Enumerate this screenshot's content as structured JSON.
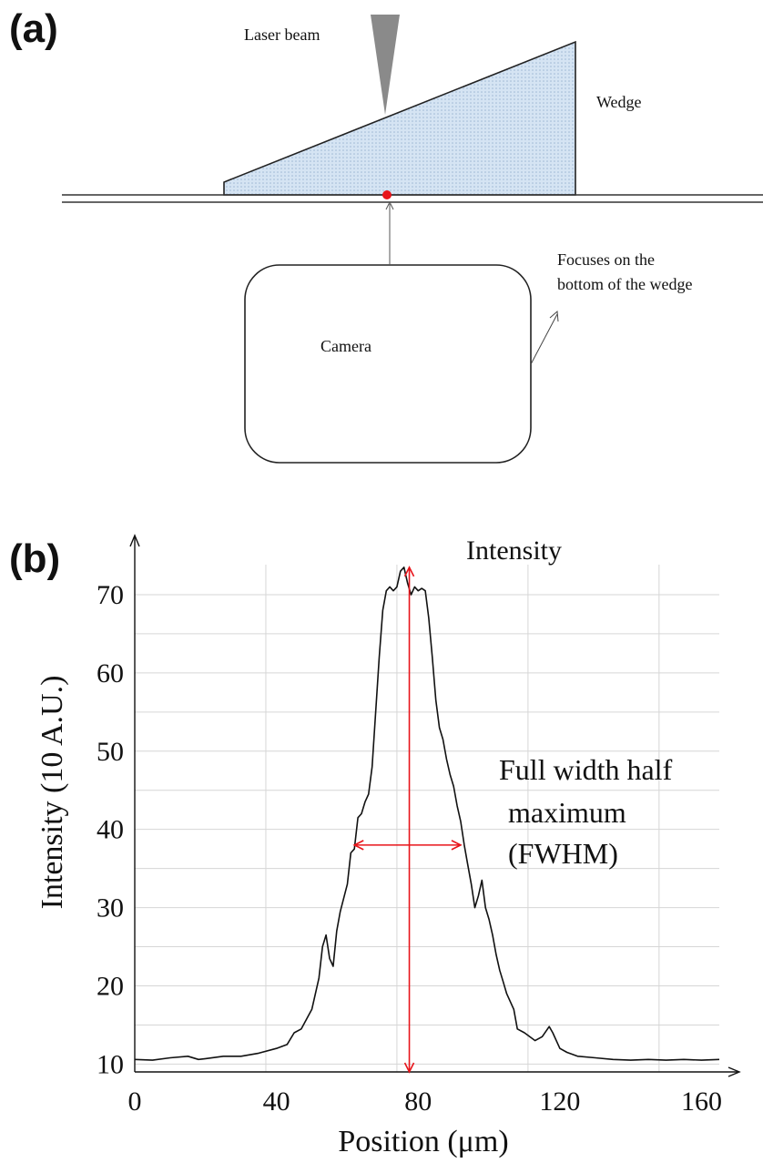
{
  "panel_a": {
    "label": "(a)",
    "laser_beam_label": "Laser beam",
    "wedge_label": "Wedge",
    "camera_label": "Camera",
    "focus_note_line1": "Focuses on the",
    "focus_note_line2": "bottom of the wedge",
    "colors": {
      "wedge_fill": "#cfe0f1",
      "focus_point": "#e8141a",
      "beam": "#888888"
    }
  },
  "panel_b": {
    "label": "(b)",
    "fwhm_line1": "Full width half",
    "fwhm_line2": "maximum",
    "fwhm_line3": "(FWHM)",
    "colors": {
      "line": "#111111",
      "arrow": "#e8141a",
      "grid": "#d6d6d6"
    }
  },
  "chart_data": {
    "type": "line",
    "title": "Intensity",
    "xlabel": "Position (μm)",
    "ylabel": "Intensity  (10 A.U.)",
    "xlim": [
      0,
      165
    ],
    "ylim": [
      9,
      75
    ],
    "x_ticks": [
      0,
      40,
      80,
      120,
      160
    ],
    "y_ticks": [
      10,
      20,
      30,
      40,
      50,
      60,
      70
    ],
    "x_grid": [
      0,
      37,
      74,
      111,
      148
    ],
    "y_grid": [
      10,
      15,
      20,
      25,
      30,
      35,
      40,
      45,
      50,
      55,
      60,
      65,
      70
    ],
    "grid": true,
    "series": [
      {
        "x": [
          0,
          5,
          10,
          15,
          18,
          20,
          25,
          30,
          35,
          40,
          43,
          45,
          47,
          50,
          52,
          53,
          54,
          55,
          56,
          57,
          58,
          60,
          61,
          62,
          63,
          64,
          65,
          66,
          67,
          68,
          69,
          70,
          71,
          72,
          73,
          74,
          75,
          76,
          77,
          78,
          79,
          80,
          81,
          82,
          83,
          84,
          85,
          86,
          87,
          88,
          89,
          90,
          91,
          92,
          93,
          94,
          95,
          96,
          97,
          98,
          99,
          100,
          101,
          102,
          103,
          104,
          105,
          107,
          108,
          110,
          113,
          115,
          117,
          118,
          120,
          122,
          125,
          130,
          135,
          140,
          145,
          150,
          155,
          160,
          165
        ],
        "values": [
          10.6,
          10.5,
          10.8,
          11.0,
          10.6,
          10.7,
          11.0,
          11.0,
          11.4,
          12.0,
          12.5,
          14.0,
          14.5,
          17.0,
          21.0,
          25.0,
          26.5,
          23.5,
          22.5,
          27.0,
          29.5,
          33.0,
          37.0,
          37.5,
          41.5,
          42.0,
          43.5,
          44.5,
          48.0,
          55.0,
          62.0,
          68.0,
          70.5,
          71.0,
          70.5,
          71.0,
          73.0,
          73.5,
          71.5,
          70.0,
          71.0,
          70.5,
          70.8,
          70.5,
          67.0,
          62.0,
          56.5,
          53.0,
          51.5,
          49.0,
          47.0,
          45.5,
          43.0,
          41.0,
          38.0,
          35.5,
          33.0,
          30.0,
          31.5,
          33.5,
          30.0,
          28.5,
          26.5,
          24.0,
          22.0,
          20.5,
          19.0,
          17.0,
          14.5,
          14.0,
          13.0,
          13.5,
          14.8,
          14.0,
          12.0,
          11.5,
          11.0,
          10.8,
          10.6,
          10.5,
          10.6,
          10.5,
          10.6,
          10.5,
          10.6
        ]
      }
    ],
    "annotations": [
      {
        "type": "vertical-arrow",
        "x": 77.5,
        "y_from": 9,
        "y_to": 73.5
      },
      {
        "type": "horizontal-arrow",
        "y": 38.0,
        "x_from": 62,
        "x_to": 92
      }
    ]
  }
}
